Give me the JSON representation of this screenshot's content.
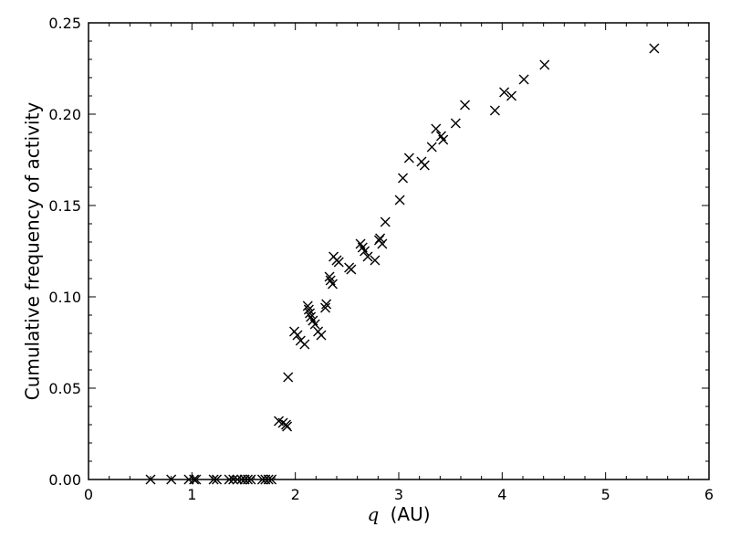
{
  "chart_data": {
    "type": "scatter",
    "marker": "x",
    "marker_color": "#000000",
    "xlabel_symbol": "q",
    "xlabel_unit": "(AU)",
    "ylabel": "Cumulative frequency of activity",
    "xlim": [
      0,
      6
    ],
    "ylim": [
      0,
      0.25
    ],
    "grid": false,
    "x_ticks": [
      0,
      1,
      2,
      3,
      4,
      5,
      6
    ],
    "x_tick_labels": [
      "0",
      "1",
      "2",
      "3",
      "4",
      "5",
      "6"
    ],
    "y_ticks": [
      0,
      0.05,
      0.1,
      0.15,
      0.2,
      0.25
    ],
    "y_tick_labels": [
      "0.00",
      "0.05",
      "0.10",
      "0.15",
      "0.20",
      "0.25"
    ],
    "points": [
      [
        0.6,
        0.0
      ],
      [
        0.8,
        0.0
      ],
      [
        0.97,
        0.0
      ],
      [
        1.02,
        0.0
      ],
      [
        1.04,
        0.0
      ],
      [
        1.21,
        0.0
      ],
      [
        1.24,
        0.0
      ],
      [
        1.36,
        0.0
      ],
      [
        1.4,
        0.0
      ],
      [
        1.44,
        0.0
      ],
      [
        1.48,
        0.0
      ],
      [
        1.51,
        0.0
      ],
      [
        1.54,
        0.0
      ],
      [
        1.57,
        0.0
      ],
      [
        1.68,
        0.0
      ],
      [
        1.71,
        0.0
      ],
      [
        1.74,
        0.0
      ],
      [
        1.77,
        0.0
      ],
      [
        1.84,
        0.032
      ],
      [
        1.88,
        0.031
      ],
      [
        1.91,
        0.03
      ],
      [
        1.92,
        0.029
      ],
      [
        1.93,
        0.056
      ],
      [
        1.99,
        0.081
      ],
      [
        2.02,
        0.079
      ],
      [
        2.05,
        0.076
      ],
      [
        2.09,
        0.074
      ],
      [
        2.12,
        0.095
      ],
      [
        2.13,
        0.093
      ],
      [
        2.14,
        0.091
      ],
      [
        2.15,
        0.089
      ],
      [
        2.17,
        0.087
      ],
      [
        2.19,
        0.085
      ],
      [
        2.22,
        0.081
      ],
      [
        2.25,
        0.079
      ],
      [
        2.29,
        0.094
      ],
      [
        2.3,
        0.096
      ],
      [
        2.33,
        0.111
      ],
      [
        2.34,
        0.109
      ],
      [
        2.36,
        0.107
      ],
      [
        2.37,
        0.122
      ],
      [
        2.4,
        0.12
      ],
      [
        2.42,
        0.119
      ],
      [
        2.52,
        0.116
      ],
      [
        2.54,
        0.115
      ],
      [
        2.63,
        0.129
      ],
      [
        2.65,
        0.127
      ],
      [
        2.67,
        0.125
      ],
      [
        2.7,
        0.122
      ],
      [
        2.77,
        0.12
      ],
      [
        2.81,
        0.131
      ],
      [
        2.82,
        0.132
      ],
      [
        2.84,
        0.129
      ],
      [
        2.87,
        0.141
      ],
      [
        3.01,
        0.153
      ],
      [
        3.04,
        0.165
      ],
      [
        3.1,
        0.176
      ],
      [
        3.22,
        0.174
      ],
      [
        3.25,
        0.172
      ],
      [
        3.32,
        0.182
      ],
      [
        3.36,
        0.192
      ],
      [
        3.41,
        0.188
      ],
      [
        3.43,
        0.186
      ],
      [
        3.55,
        0.195
      ],
      [
        3.64,
        0.205
      ],
      [
        3.93,
        0.202
      ],
      [
        4.02,
        0.212
      ],
      [
        4.09,
        0.21
      ],
      [
        4.21,
        0.219
      ],
      [
        4.41,
        0.227
      ],
      [
        5.47,
        0.236
      ]
    ]
  }
}
